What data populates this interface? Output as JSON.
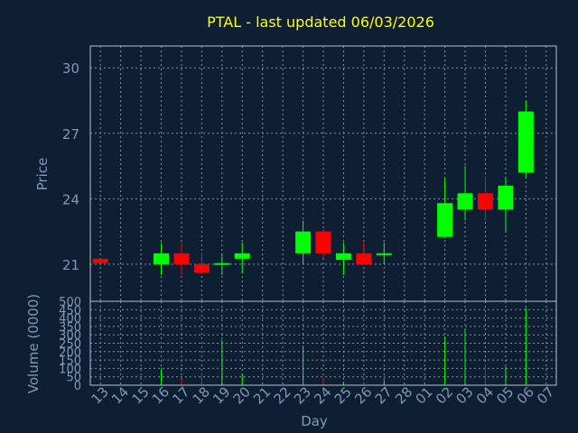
{
  "chart_data": [
    {
      "type": "candlestick",
      "title": "PTAL - last updated 06/03/2026",
      "ylabel": "Price",
      "ylim": [
        19.3,
        31
      ],
      "yticks": [
        21,
        24,
        27,
        30
      ],
      "grid": true,
      "up_color": "#00ff00",
      "down_color": "#ff0000",
      "categories": [
        "13",
        "14",
        "15",
        "16",
        "17",
        "18",
        "19",
        "20",
        "21",
        "22",
        "23",
        "24",
        "25",
        "26",
        "27",
        "28",
        "01",
        "02",
        "03",
        "04",
        "05",
        "06",
        "07"
      ],
      "candles": [
        {
          "day": "13",
          "open": 21.25,
          "close": 21.05,
          "high": 21.25,
          "low": 21.05
        },
        {
          "day": "16",
          "open": 21.0,
          "close": 21.5,
          "high": 22.0,
          "low": 20.5
        },
        {
          "day": "17",
          "open": 21.5,
          "close": 21.0,
          "high": 22.0,
          "low": 20.5
        },
        {
          "day": "18",
          "open": 21.0,
          "close": 20.6,
          "high": 21.5,
          "low": 20.6
        },
        {
          "day": "19",
          "open": 21.0,
          "close": 21.05,
          "high": 21.5,
          "low": 20.5
        },
        {
          "day": "20",
          "open": 21.25,
          "close": 21.5,
          "high": 22.0,
          "low": 20.6
        },
        {
          "day": "23",
          "open": 21.5,
          "close": 22.5,
          "high": 23.0,
          "low": 21.0
        },
        {
          "day": "24",
          "open": 22.5,
          "close": 21.5,
          "high": 22.6,
          "low": 21.3
        },
        {
          "day": "25",
          "open": 21.2,
          "close": 21.5,
          "high": 22.0,
          "low": 20.5
        },
        {
          "day": "26",
          "open": 21.5,
          "close": 21.0,
          "high": 22.0,
          "low": 21.0
        },
        {
          "day": "27",
          "open": 21.45,
          "close": 21.5,
          "high": 22.0,
          "low": 21.0
        },
        {
          "day": "02",
          "open": 22.25,
          "close": 23.8,
          "high": 25.0,
          "low": 22.2
        },
        {
          "day": "03",
          "open": 23.5,
          "close": 24.25,
          "high": 25.5,
          "low": 23.0
        },
        {
          "day": "04",
          "open": 24.25,
          "close": 23.5,
          "high": 25.0,
          "low": 23.0
        },
        {
          "day": "05",
          "open": 23.5,
          "close": 24.6,
          "high": 25.0,
          "low": 22.5
        },
        {
          "day": "06",
          "open": 25.2,
          "close": 28.0,
          "high": 28.5,
          "low": 25.0
        }
      ]
    },
    {
      "type": "bar",
      "ylabel": "Volume (0000)",
      "xlabel": "Day",
      "ylim": [
        0,
        500
      ],
      "yticks": [
        0,
        50,
        100,
        150,
        200,
        250,
        300,
        350,
        400,
        450,
        500
      ],
      "categories": [
        "13",
        "14",
        "15",
        "16",
        "17",
        "18",
        "19",
        "20",
        "21",
        "22",
        "23",
        "24",
        "25",
        "26",
        "27",
        "28",
        "01",
        "02",
        "03",
        "04",
        "05",
        "06",
        "07"
      ],
      "volumes": [
        {
          "day": "13",
          "value": 0,
          "color": "#ff0000"
        },
        {
          "day": "16",
          "value": 100,
          "color": "#00ff00"
        },
        {
          "day": "17",
          "value": 30,
          "color": "#ff0000"
        },
        {
          "day": "18",
          "value": 75,
          "color": "#ff0000"
        },
        {
          "day": "19",
          "value": 270,
          "color": "#00ff00"
        },
        {
          "day": "20",
          "value": 70,
          "color": "#00ff00"
        },
        {
          "day": "23",
          "value": 235,
          "color": "#00ff00"
        },
        {
          "day": "24",
          "value": 40,
          "color": "#ff0000"
        },
        {
          "day": "25",
          "value": 20,
          "color": "#00ff00"
        },
        {
          "day": "26",
          "value": 10,
          "color": "#ff0000"
        },
        {
          "day": "27",
          "value": 30,
          "color": "#00ff00"
        },
        {
          "day": "02",
          "value": 290,
          "color": "#00ff00"
        },
        {
          "day": "03",
          "value": 330,
          "color": "#00ff00"
        },
        {
          "day": "04",
          "value": 125,
          "color": "#ff0000"
        },
        {
          "day": "05",
          "value": 110,
          "color": "#00ff00"
        },
        {
          "day": "06",
          "value": 460,
          "color": "#00ff00"
        }
      ]
    }
  ]
}
